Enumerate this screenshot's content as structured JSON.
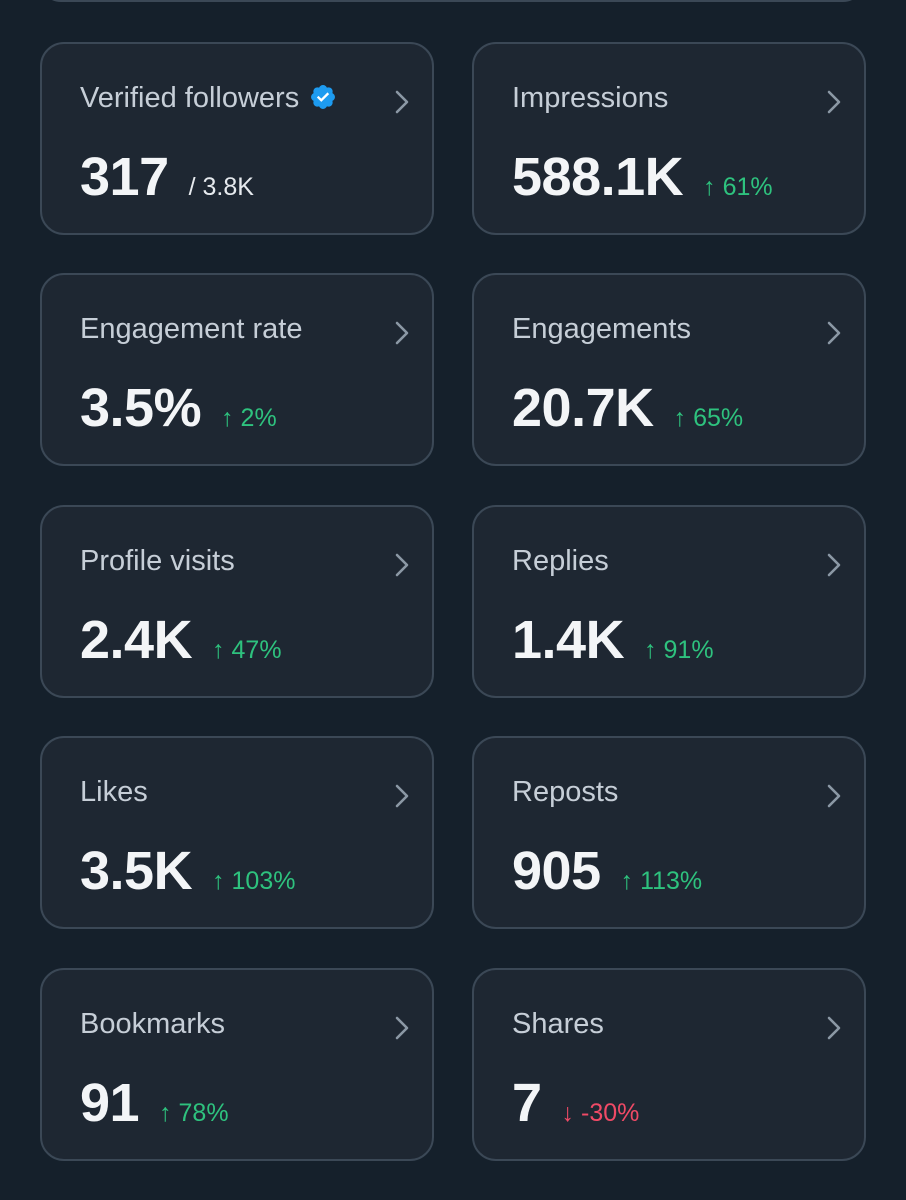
{
  "colors": {
    "background": "#15202b",
    "card": "#1e2732",
    "border": "#3b4856",
    "label": "#c6ced7",
    "value": "#f3f5f7",
    "positive": "#2ec27e",
    "negative": "#f04a66",
    "verified": "#1d9bf0"
  },
  "metrics": [
    {
      "label": "Verified followers",
      "value": "317",
      "sub": "/ 3.8K",
      "icon": "verified-badge-icon"
    },
    {
      "label": "Impressions",
      "value": "588.1K",
      "delta": "61%",
      "direction": "up"
    },
    {
      "label": "Engagement rate",
      "value": "3.5%",
      "delta": "2%",
      "direction": "up"
    },
    {
      "label": "Engagements",
      "value": "20.7K",
      "delta": "65%",
      "direction": "up"
    },
    {
      "label": "Profile visits",
      "value": "2.4K",
      "delta": "47%",
      "direction": "up"
    },
    {
      "label": "Replies",
      "value": "1.4K",
      "delta": "91%",
      "direction": "up"
    },
    {
      "label": "Likes",
      "value": "3.5K",
      "delta": "103%",
      "direction": "up"
    },
    {
      "label": "Reposts",
      "value": "905",
      "delta": "113%",
      "direction": "up"
    },
    {
      "label": "Bookmarks",
      "value": "91",
      "delta": "78%",
      "direction": "up"
    },
    {
      "label": "Shares",
      "value": "7",
      "delta": "-30%",
      "direction": "down"
    }
  ],
  "arrows": {
    "up": "↑",
    "down": "↓"
  }
}
